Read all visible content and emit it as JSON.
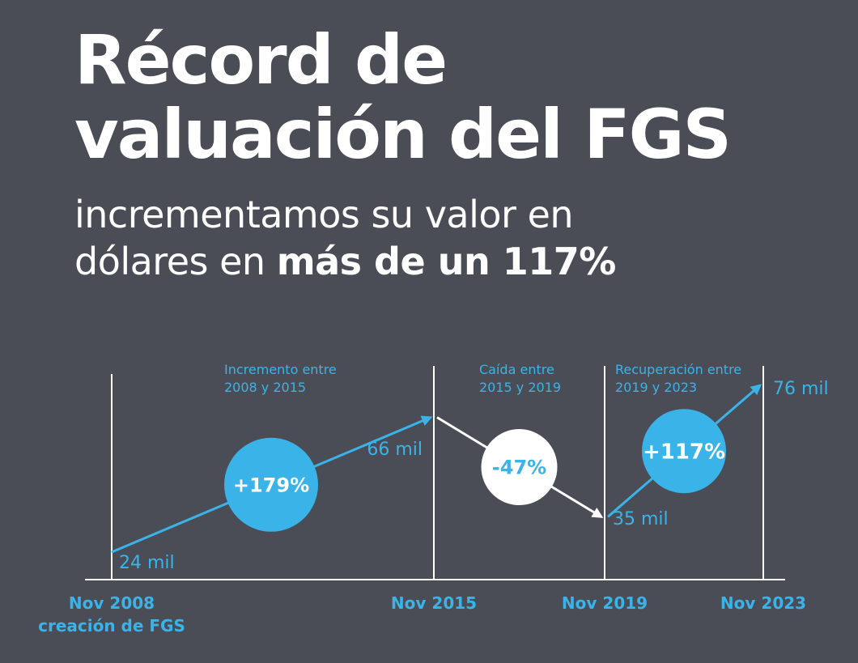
{
  "header": {
    "title_line1": "Récord de",
    "title_line2": "valuación del FGS",
    "subtitle_line1": "incrementamos su valor en",
    "subtitle_line2_normal": "dólares en ",
    "subtitle_line2_bold": "más de un 117%"
  },
  "colors": {
    "background": "#4b4d56",
    "accent": "#3ab4e8",
    "text": "#ffffff"
  },
  "chart_data": {
    "type": "line",
    "xlabel": "",
    "ylabel": "",
    "x": [
      "Nov 2008",
      "Nov 2015",
      "Nov 2019",
      "Nov 2023"
    ],
    "x_sublabels": [
      "creación de FGS",
      "",
      "",
      ""
    ],
    "values": [
      24,
      66,
      35,
      76
    ],
    "value_labels": [
      "24 mil",
      "66 mil",
      "35 mil",
      "76 mil"
    ],
    "ylim": [
      0,
      80
    ],
    "grid": "vertical lines at each period",
    "segments": [
      {
        "label": "Incremento entre\n2008 y 2015",
        "change": "+179%",
        "from": 0,
        "to": 1,
        "color": "#3ab4e8"
      },
      {
        "label": "Caída entre\n2015  y 2019",
        "change": "-47%",
        "from": 1,
        "to": 2,
        "color": "#ffffff"
      },
      {
        "label": "Recuperación entre\n2019 y 2023",
        "change": "+117%",
        "from": 2,
        "to": 3,
        "color": "#3ab4e8"
      }
    ]
  }
}
